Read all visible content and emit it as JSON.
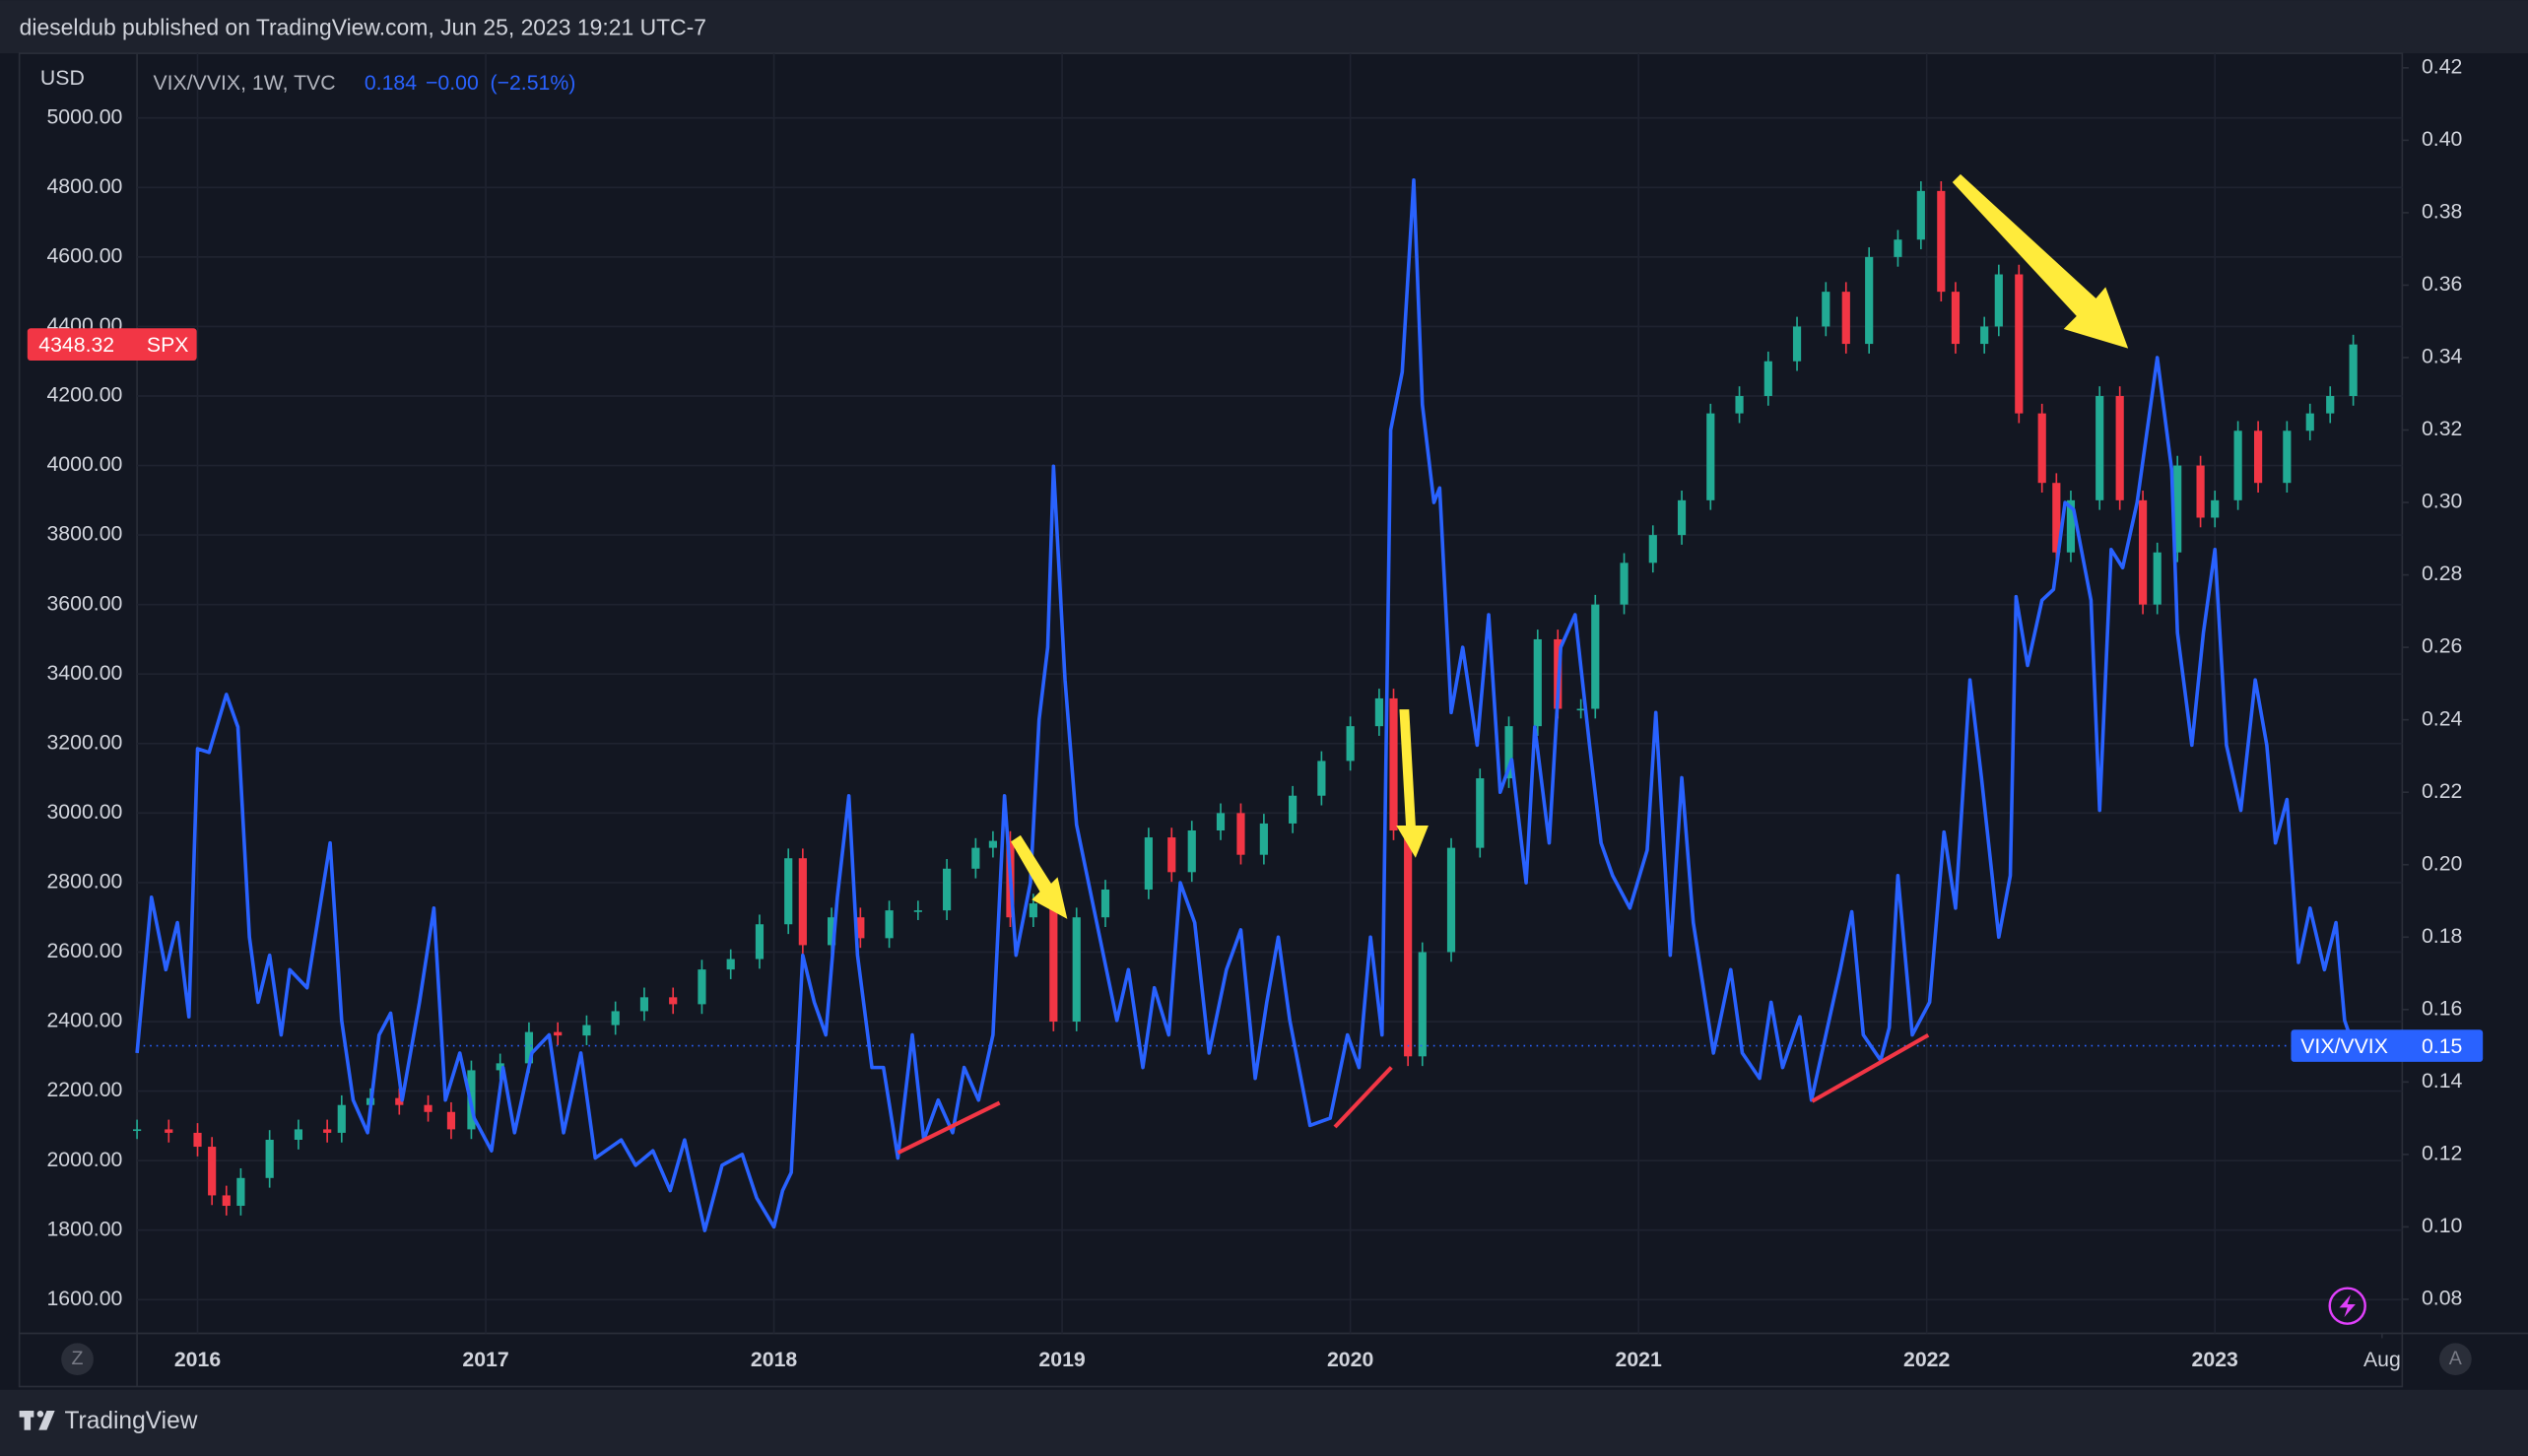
{
  "chart_data": {
    "type": "candlestick",
    "header": "dieseldub published on TradingView.com, Jun 25, 2023 19:21 UTC-7",
    "y_label": "USD",
    "legend_title": "VIX/VVIX, 1W, TVC",
    "legend_change": "−0.00",
    "legend_change_pct": "(−2.51%)",
    "footer": "TradingView",
    "left_button": "Z",
    "right_button": "A",
    "grid": true,
    "xlim": [
      2015.79,
      2023.65
    ],
    "xticks": [
      2016,
      2017,
      2018,
      2019,
      2020,
      2021,
      2022,
      2023,
      {
        "value": 2023.58,
        "label": "Aug"
      }
    ],
    "ylim": [
      1503,
      5186
    ],
    "yticks": [
      {
        "value": 1600,
        "label": "1600.00"
      },
      {
        "value": 1800,
        "label": "1800.00"
      },
      {
        "value": 2000,
        "label": "2000.00"
      },
      {
        "value": 2200,
        "label": "2200.00"
      },
      {
        "value": 2400,
        "label": "2400.00"
      },
      {
        "value": 2600,
        "label": "2600.00"
      },
      {
        "value": 2800,
        "label": "2800.00"
      },
      {
        "value": 3000,
        "label": "3000.00"
      },
      {
        "value": 3200,
        "label": "3200.00"
      },
      {
        "value": 3400,
        "label": "3400.00"
      },
      {
        "value": 3600,
        "label": "3600.00"
      },
      {
        "value": 3800,
        "label": "3800.00"
      },
      {
        "value": 4000,
        "label": "4000.00"
      },
      {
        "value": 4200,
        "label": "4200.00"
      },
      {
        "value": 4400,
        "label": "4400.00"
      },
      {
        "value": 4600,
        "label": "4600.00"
      },
      {
        "value": 4800,
        "label": "4800.00"
      },
      {
        "value": 5000,
        "label": "5000.00"
      }
    ],
    "y2lim": [
      0.0706,
      0.424
    ],
    "y2ticks": [
      0.08,
      {
        "value": 0.1,
        "label": "0.10"
      },
      0.12,
      0.14,
      0.16,
      0.18,
      {
        "value": 0.2,
        "label": "0.20"
      },
      0.22,
      0.24,
      0.26,
      0.28,
      {
        "value": 0.3,
        "label": "0.30"
      },
      0.32,
      0.34,
      0.36,
      0.38,
      {
        "value": 0.4,
        "label": "0.40"
      },
      0.42
    ],
    "series": [
      {
        "name": "SPX",
        "type": "candlestick",
        "up_color": "#22ab94",
        "down_color": "#f23645",
        "tag_color": "#f23645",
        "x": [
          2015.79,
          2015.9,
          2016.0,
          2016.05,
          2016.1,
          2016.15,
          2016.25,
          2016.35,
          2016.45,
          2016.5,
          2016.6,
          2016.7,
          2016.8,
          2016.88,
          2016.95,
          2017.05,
          2017.15,
          2017.25,
          2017.35,
          2017.45,
          2017.55,
          2017.65,
          2017.75,
          2017.85,
          2017.95,
          2018.05,
          2018.1,
          2018.2,
          2018.3,
          2018.4,
          2018.5,
          2018.6,
          2018.7,
          2018.76,
          2018.82,
          2018.9,
          2018.97,
          2019.05,
          2019.15,
          2019.3,
          2019.38,
          2019.45,
          2019.55,
          2019.62,
          2019.7,
          2019.8,
          2019.9,
          2020.0,
          2020.1,
          2020.15,
          2020.2,
          2020.25,
          2020.35,
          2020.45,
          2020.55,
          2020.65,
          2020.72,
          2020.8,
          2020.85,
          2020.95,
          2021.05,
          2021.15,
          2021.25,
          2021.35,
          2021.45,
          2021.55,
          2021.65,
          2021.72,
          2021.8,
          2021.9,
          2021.98,
          2022.05,
          2022.1,
          2022.2,
          2022.25,
          2022.32,
          2022.4,
          2022.45,
          2022.5,
          2022.6,
          2022.67,
          2022.75,
          2022.8,
          2022.87,
          2022.95,
          2023.0,
          2023.08,
          2023.15,
          2023.25,
          2023.33,
          2023.4,
          2023.48
        ],
        "values": [
          2090,
          2080,
          2040,
          1900,
          1870,
          1950,
          2060,
          2090,
          2080,
          2160,
          2180,
          2160,
          2140,
          2090,
          2260,
          2280,
          2370,
          2360,
          2390,
          2430,
          2470,
          2450,
          2550,
          2580,
          2680,
          2870,
          2620,
          2700,
          2640,
          2720,
          2720,
          2840,
          2900,
          2920,
          2700,
          2740,
          2400,
          2700,
          2780,
          2930,
          2830,
          2950,
          3000,
          2880,
          2970,
          3050,
          3150,
          3250,
          3330,
          2950,
          2300,
          2600,
          2900,
          3100,
          3250,
          3500,
          3300,
          3300,
          3600,
          3720,
          3800,
          3900,
          4150,
          4200,
          4300,
          4400,
          4500,
          4350,
          4600,
          4650,
          4790,
          4500,
          4350,
          4400,
          4550,
          4150,
          3950,
          3750,
          3900,
          4200,
          3900,
          3600,
          3750,
          4000,
          3850,
          3900,
          4100,
          3950,
          4100,
          4150,
          4200,
          4348.32
        ]
      },
      {
        "name": "VIX/VVIX",
        "type": "line",
        "axis": "y2",
        "color": "#2962ff",
        "x": [
          2015.79,
          2015.84,
          2015.89,
          2015.93,
          2015.97,
          2016.0,
          2016.04,
          2016.1,
          2016.14,
          2016.18,
          2016.21,
          2016.25,
          2016.29,
          2016.32,
          2016.38,
          2016.46,
          2016.5,
          2016.54,
          2016.59,
          2016.63,
          2016.67,
          2016.71,
          2016.77,
          2016.82,
          2016.86,
          2016.91,
          2016.96,
          2017.02,
          2017.06,
          2017.1,
          2017.16,
          2017.22,
          2017.27,
          2017.33,
          2017.38,
          2017.47,
          2017.52,
          2017.58,
          2017.64,
          2017.69,
          2017.76,
          2017.82,
          2017.89,
          2017.94,
          2018.0,
          2018.03,
          2018.06,
          2018.1,
          2018.14,
          2018.18,
          2018.22,
          2018.26,
          2018.29,
          2018.34,
          2018.38,
          2018.43,
          2018.48,
          2018.52,
          2018.57,
          2018.62,
          2018.66,
          2018.71,
          2018.76,
          2018.8,
          2018.84,
          2018.89,
          2018.92,
          2018.95,
          2018.97,
          2019.01,
          2019.05,
          2019.12,
          2019.19,
          2019.23,
          2019.28,
          2019.32,
          2019.37,
          2019.41,
          2019.46,
          2019.51,
          2019.57,
          2019.62,
          2019.67,
          2019.71,
          2019.75,
          2019.79,
          2019.86,
          2019.93,
          2019.99,
          2020.03,
          2020.07,
          2020.11,
          2020.14,
          2020.18,
          2020.22,
          2020.25,
          2020.29,
          2020.31,
          2020.35,
          2020.39,
          2020.44,
          2020.48,
          2020.52,
          2020.56,
          2020.61,
          2020.64,
          2020.69,
          2020.73,
          2020.78,
          2020.83,
          2020.87,
          2020.91,
          2020.97,
          2021.03,
          2021.06,
          2021.11,
          2021.15,
          2021.19,
          2021.26,
          2021.32,
          2021.36,
          2021.42,
          2021.46,
          2021.5,
          2021.56,
          2021.6,
          2021.65,
          2021.7,
          2021.74,
          2021.78,
          2021.84,
          2021.87,
          2021.9,
          2021.95,
          2022.01,
          2022.06,
          2022.1,
          2022.15,
          2022.19,
          2022.25,
          2022.29,
          2022.31,
          2022.35,
          2022.4,
          2022.44,
          2022.48,
          2022.51,
          2022.57,
          2022.6,
          2022.64,
          2022.68,
          2022.73,
          2022.8,
          2022.85,
          2022.87,
          2022.92,
          2022.96,
          2023.0,
          2023.04,
          2023.09,
          2023.14,
          2023.18,
          2023.21,
          2023.25,
          2023.29,
          2023.33,
          2023.38,
          2023.42,
          2023.45,
          2023.48
        ],
        "values": [
          0.148,
          0.191,
          0.171,
          0.184,
          0.158,
          0.232,
          0.231,
          0.247,
          0.238,
          0.18,
          0.162,
          0.175,
          0.153,
          0.171,
          0.166,
          0.206,
          0.157,
          0.135,
          0.126,
          0.153,
          0.159,
          0.135,
          0.162,
          0.188,
          0.135,
          0.148,
          0.13,
          0.121,
          0.144,
          0.126,
          0.148,
          0.153,
          0.126,
          0.148,
          0.119,
          0.124,
          0.117,
          0.121,
          0.11,
          0.124,
          0.099,
          0.117,
          0.12,
          0.108,
          0.1,
          0.11,
          0.115,
          0.175,
          0.162,
          0.153,
          0.191,
          0.219,
          0.175,
          0.144,
          0.144,
          0.119,
          0.153,
          0.124,
          0.135,
          0.126,
          0.144,
          0.135,
          0.153,
          0.219,
          0.175,
          0.195,
          0.24,
          0.26,
          0.31,
          0.251,
          0.211,
          0.184,
          0.157,
          0.171,
          0.144,
          0.166,
          0.153,
          0.195,
          0.184,
          0.148,
          0.171,
          0.182,
          0.141,
          0.162,
          0.18,
          0.157,
          0.128,
          0.13,
          0.153,
          0.144,
          0.18,
          0.153,
          0.32,
          0.336,
          0.389,
          0.327,
          0.3,
          0.304,
          0.242,
          0.26,
          0.233,
          0.269,
          0.22,
          0.229,
          0.195,
          0.238,
          0.206,
          0.26,
          0.269,
          0.233,
          0.206,
          0.197,
          0.188,
          0.204,
          0.242,
          0.175,
          0.224,
          0.184,
          0.148,
          0.171,
          0.148,
          0.141,
          0.162,
          0.144,
          0.158,
          0.135,
          0.153,
          0.171,
          0.187,
          0.153,
          0.146,
          0.155,
          0.197,
          0.153,
          0.162,
          0.209,
          0.188,
          0.251,
          0.224,
          0.18,
          0.197,
          0.274,
          0.255,
          0.273,
          0.276,
          0.3,
          0.298,
          0.273,
          0.215,
          0.287,
          0.282,
          0.3,
          0.34,
          0.309,
          0.264,
          0.233,
          0.264,
          0.287,
          0.233,
          0.215,
          0.251,
          0.233,
          0.206,
          0.218,
          0.173,
          0.188,
          0.171,
          0.184,
          0.157,
          0.15
        ]
      }
    ]
  }
}
